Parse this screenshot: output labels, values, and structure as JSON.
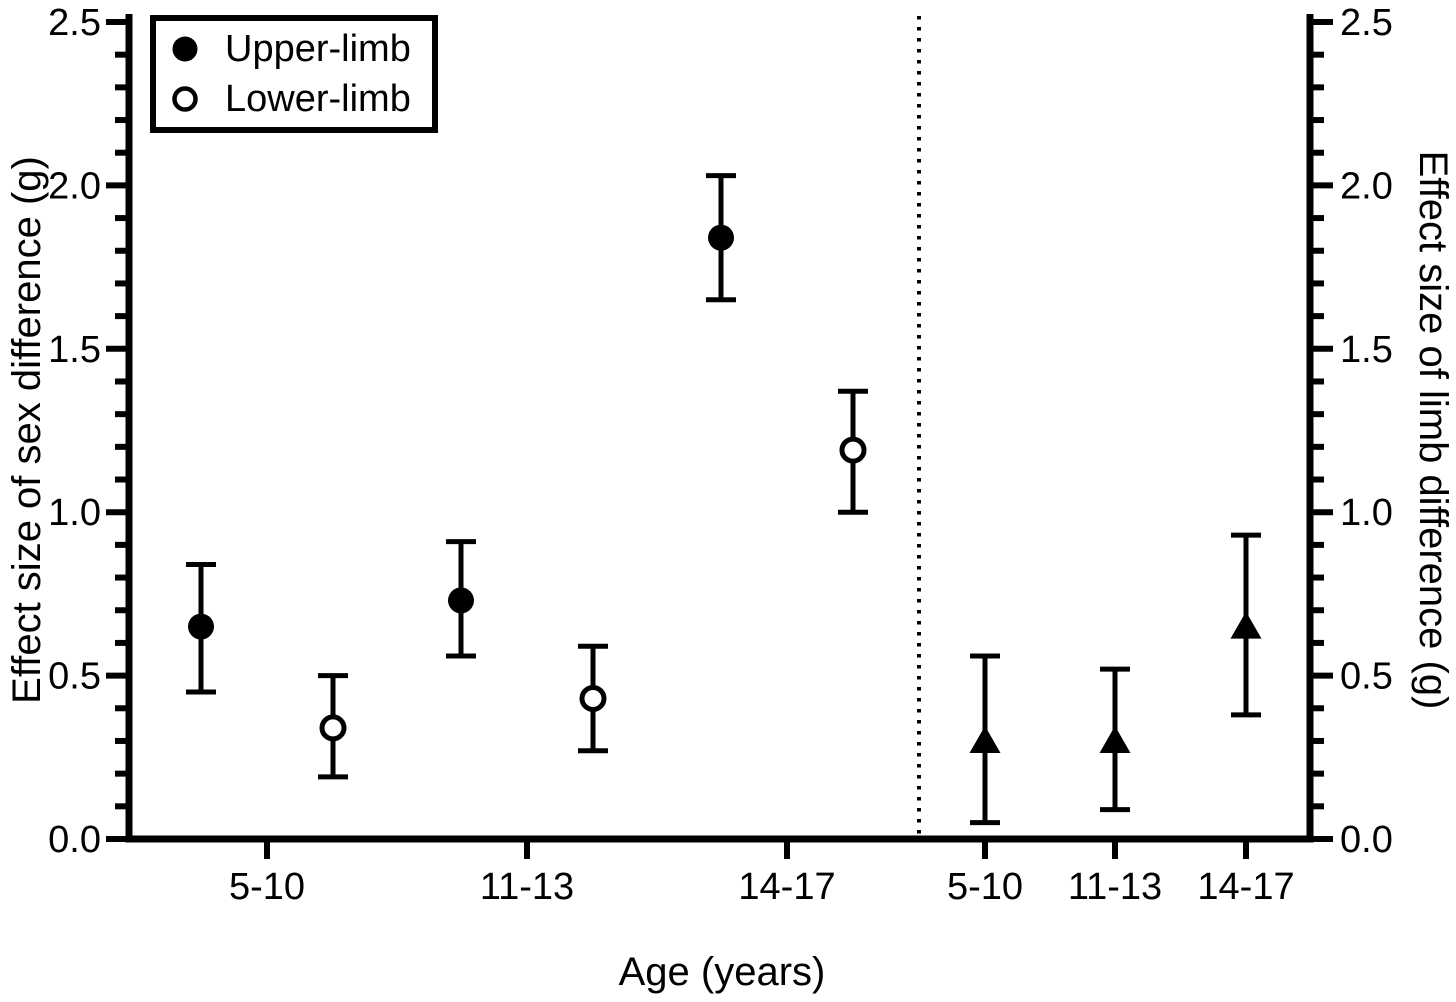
{
  "figure": {
    "background": "#ffffff",
    "ink": "#000000"
  },
  "chart_data": {
    "type": "scatter",
    "title": "",
    "xlabel": "Age (years)",
    "ylabel_left": "Effect size of sex difference (g)",
    "ylabel_right": "Effect size of limb difference (g)",
    "ylim": [
      0.0,
      2.5
    ],
    "ytick_major_step": 0.5,
    "ytick_minor_step": 0.1,
    "ytick_labels": [
      "0.0",
      "0.5",
      "1.0",
      "1.5",
      "2.0",
      "2.5"
    ],
    "grid": false,
    "legend": {
      "position": "top-left",
      "entries": [
        {
          "marker": "filled-circle",
          "label": "Upper-limb"
        },
        {
          "marker": "open-circle",
          "label": "Lower-limb"
        }
      ]
    },
    "panel_divider": "vertical-dotted-line",
    "panels": [
      {
        "name": "sex-difference-panel",
        "axis": "left",
        "categories": [
          "5-10",
          "11-13",
          "14-17"
        ],
        "series": [
          {
            "name": "Upper-limb",
            "marker": "filled-circle",
            "points": [
              {
                "y": 0.65,
                "lo": 0.45,
                "hi": 0.84
              },
              {
                "y": 0.73,
                "lo": 0.56,
                "hi": 0.91
              },
              {
                "y": 1.84,
                "lo": 1.65,
                "hi": 2.03
              }
            ]
          },
          {
            "name": "Lower-limb",
            "marker": "open-circle",
            "points": [
              {
                "y": 0.34,
                "lo": 0.19,
                "hi": 0.5
              },
              {
                "y": 0.43,
                "lo": 0.27,
                "hi": 0.59
              },
              {
                "y": 1.19,
                "lo": 1.0,
                "hi": 1.37
              }
            ]
          }
        ]
      },
      {
        "name": "limb-difference-panel",
        "axis": "right",
        "categories": [
          "5-10",
          "11-13",
          "14-17"
        ],
        "series": [
          {
            "name": "Limb difference",
            "marker": "filled-triangle",
            "points": [
              {
                "y": 0.3,
                "lo": 0.05,
                "hi": 0.56
              },
              {
                "y": 0.3,
                "lo": 0.09,
                "hi": 0.52
              },
              {
                "y": 0.65,
                "lo": 0.38,
                "hi": 0.93
              }
            ]
          }
        ]
      }
    ]
  }
}
